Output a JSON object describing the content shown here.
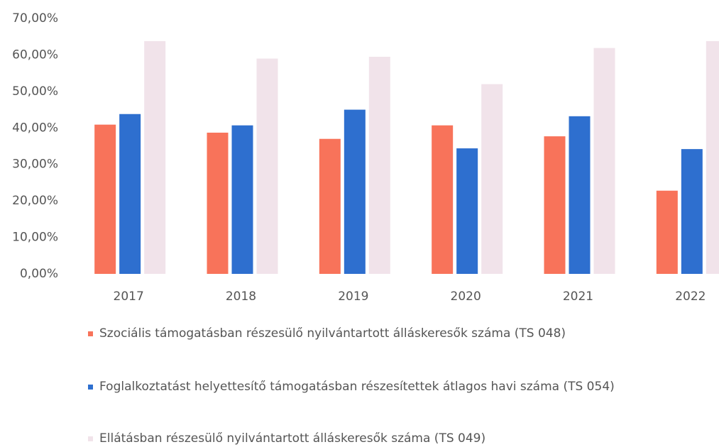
{
  "chart_data": {
    "type": "bar",
    "categories": [
      "2017",
      "2018",
      "2019",
      "2020",
      "2021",
      "2022"
    ],
    "series": [
      {
        "name": "Szociális támogatásban részesülő nyilvántartott álláskeresők száma (TS 048)",
        "color": "#f8735a",
        "values": [
          40.9,
          38.7,
          37.0,
          40.7,
          37.7,
          22.8
        ]
      },
      {
        "name": "Foglalkoztatást helyettesítő támogatásban részesítettek átlagos havi száma (TS 054)",
        "color": "#2e6fcf",
        "values": [
          43.8,
          40.7,
          45.0,
          34.4,
          43.2,
          34.2
        ]
      },
      {
        "name": "Ellátásban részesülő nyilvántartott álláskeresők száma (TS 049)",
        "color": "#f1e3ea",
        "values": [
          63.8,
          59.0,
          59.5,
          52.0,
          61.9,
          63.8
        ]
      }
    ],
    "ylim": [
      0,
      70
    ],
    "yticks": [
      {
        "value": 0,
        "label": "0,00%"
      },
      {
        "value": 10,
        "label": "10,00%"
      },
      {
        "value": 20,
        "label": "20,00%"
      },
      {
        "value": 30,
        "label": "30,00%"
      },
      {
        "value": 40,
        "label": "40,00%"
      },
      {
        "value": 50,
        "label": "50,00%"
      },
      {
        "value": 60,
        "label": "60,00%"
      },
      {
        "value": 70,
        "label": "70,00%"
      }
    ],
    "grid": false,
    "legend": "bottom"
  }
}
